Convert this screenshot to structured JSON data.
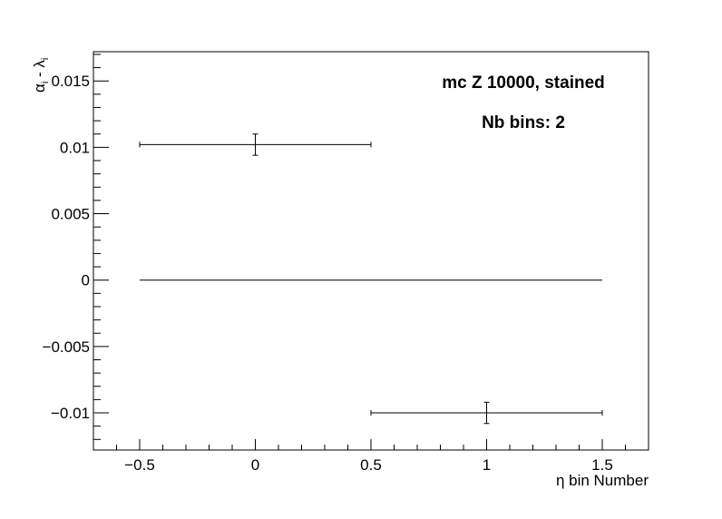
{
  "chart_data": {
    "type": "scatter",
    "xlabel": "η bin Number",
    "ylabel": "α",
    "ylabel_sub": "i",
    "ylabel_dash": " - λ",
    "ylabel_sub2": "i",
    "xlim": [
      -0.7,
      1.7
    ],
    "ylim": [
      -0.0128,
      0.0172
    ],
    "x_ticks": [
      -0.5,
      0,
      0.5,
      1,
      1.5
    ],
    "x_tick_labels": [
      "−0.5",
      "0",
      "0.5",
      "1",
      "1.5"
    ],
    "y_ticks": [
      -0.01,
      -0.005,
      0,
      0.005,
      0.01,
      0.015
    ],
    "y_tick_labels": [
      "−0.01",
      "−0.005",
      "0",
      "0.005",
      "0.01",
      "0.015"
    ],
    "grid": false,
    "reference_line": {
      "y": 0,
      "x_from": -0.5,
      "x_to": 1.5
    },
    "points": [
      {
        "x": 0,
        "y": 0.0102,
        "x_err": 0.5,
        "y_err": 0.0008
      },
      {
        "x": 1,
        "y": -0.01,
        "x_err": 0.5,
        "y_err": 0.0008
      }
    ],
    "annotations": [
      "mc Z 10000, stained",
      "Nb bins: 2"
    ]
  }
}
